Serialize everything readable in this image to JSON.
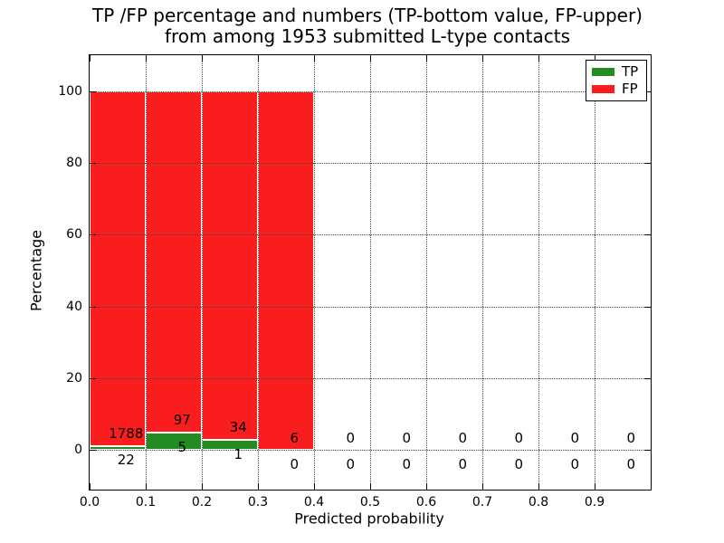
{
  "chart_data": {
    "type": "bar",
    "stacked": true,
    "title": "TP /FP percentage and numbers (TP-bottom value, FP-upper) from among 1953 submitted L-type contacts",
    "title_line1": "TP /FP percentage and numbers (TP-bottom value, FP-upper)",
    "title_line2": "from among 1953 submitted L-type contacts",
    "xlabel": "Predicted probability",
    "ylabel": "Percentage",
    "xlim": [
      0.0,
      1.0
    ],
    "ylim": [
      -11,
      110
    ],
    "x_ticks": [
      "0.0",
      "0.1",
      "0.2",
      "0.3",
      "0.4",
      "0.5",
      "0.6",
      "0.7",
      "0.8",
      "0.9"
    ],
    "y_ticks": [
      0,
      20,
      40,
      60,
      80,
      100
    ],
    "grid": true,
    "grid_style": "dotted",
    "total_submitted": 1953,
    "bin_width": 0.1,
    "bins": [
      {
        "x_start": 0.0,
        "tp_count": 22,
        "fp_count": 1788,
        "tp_pct": 1.2,
        "fp_pct": 98.8
      },
      {
        "x_start": 0.1,
        "tp_count": 5,
        "fp_count": 97,
        "tp_pct": 4.9,
        "fp_pct": 95.1
      },
      {
        "x_start": 0.2,
        "tp_count": 1,
        "fp_count": 34,
        "tp_pct": 2.9,
        "fp_pct": 97.1
      },
      {
        "x_start": 0.3,
        "tp_count": 0,
        "fp_count": 6,
        "tp_pct": 0.0,
        "fp_pct": 100.0
      },
      {
        "x_start": 0.4,
        "tp_count": 0,
        "fp_count": 0,
        "tp_pct": 0.0,
        "fp_pct": 0.0
      },
      {
        "x_start": 0.5,
        "tp_count": 0,
        "fp_count": 0,
        "tp_pct": 0.0,
        "fp_pct": 0.0
      },
      {
        "x_start": 0.6,
        "tp_count": 0,
        "fp_count": 0,
        "tp_pct": 0.0,
        "fp_pct": 0.0
      },
      {
        "x_start": 0.7,
        "tp_count": 0,
        "fp_count": 0,
        "tp_pct": 0.0,
        "fp_pct": 0.0
      },
      {
        "x_start": 0.8,
        "tp_count": 0,
        "fp_count": 0,
        "tp_pct": 0.0,
        "fp_pct": 0.0
      },
      {
        "x_start": 0.9,
        "tp_count": 0,
        "fp_count": 0,
        "tp_pct": 0.0,
        "fp_pct": 0.0
      }
    ],
    "legend": {
      "position": "upper right",
      "entries": [
        {
          "label": "TP",
          "color": "#228B22"
        },
        {
          "label": "FP",
          "color": "#F91D1D"
        }
      ]
    },
    "colors": {
      "tp": "#228B22",
      "fp": "#F91D1D",
      "bar_edge": "#FFFFFF",
      "grid": "#444444",
      "text": "#000000"
    }
  }
}
